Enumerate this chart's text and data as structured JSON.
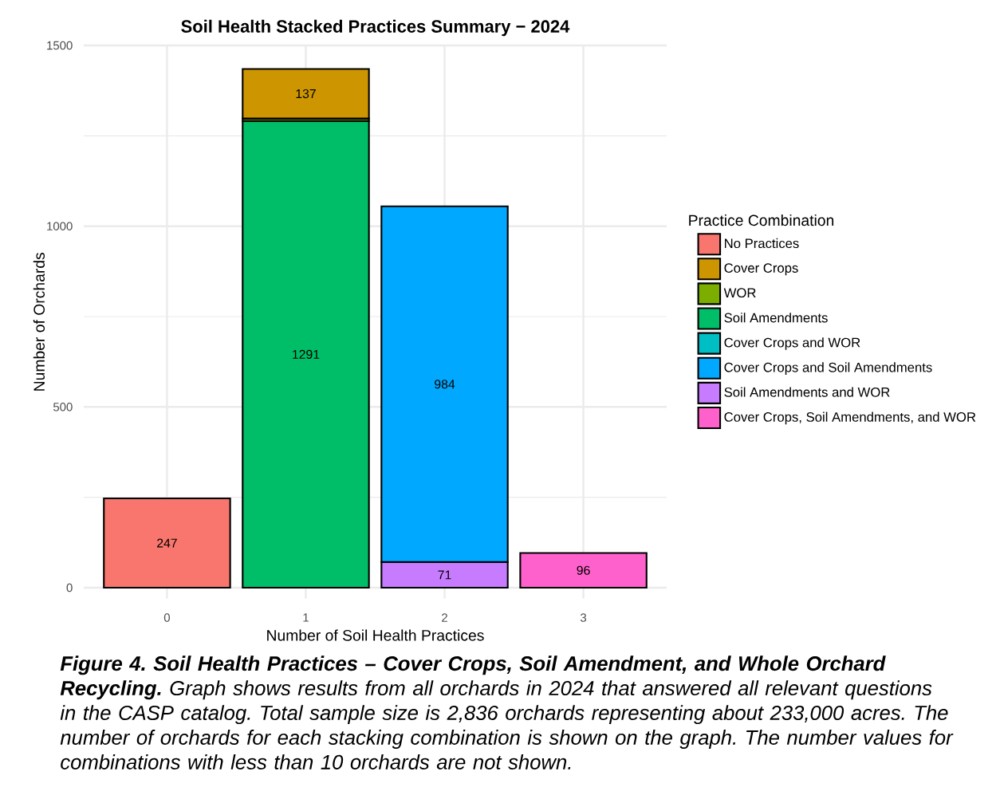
{
  "chart_data": {
    "type": "bar",
    "stacked": true,
    "title": "Soil Health Stacked Practices Summary − 2024",
    "xlabel": "Number of Soil Health Practices",
    "ylabel": "Number of Orchards",
    "legend_title": "Practice Combination",
    "categories": [
      "0",
      "1",
      "2",
      "3"
    ],
    "series": [
      {
        "name": "Cover Crops, Soil Amendments, and WOR",
        "color": "#ff61cc",
        "values": [
          null,
          null,
          null,
          96
        ],
        "value_labels": [
          null,
          null,
          null,
          "96"
        ]
      },
      {
        "name": "Soil Amendments and WOR",
        "color": "#c77cff",
        "values": [
          null,
          null,
          71,
          null
        ],
        "value_labels": [
          null,
          null,
          "71",
          null
        ]
      },
      {
        "name": "Cover Crops and Soil Amendments",
        "color": "#00a9ff",
        "values": [
          null,
          null,
          984,
          null
        ],
        "value_labels": [
          null,
          null,
          "984",
          null
        ]
      },
      {
        "name": "Cover Crops and WOR",
        "color": "#00bfc4",
        "values": [
          null,
          null,
          null,
          null
        ]
      },
      {
        "name": "Soil Amendments",
        "color": "#00be67",
        "values": [
          null,
          1291,
          null,
          null
        ],
        "value_labels": [
          null,
          "1291",
          null,
          null
        ]
      },
      {
        "name": "WOR",
        "color": "#7cae00",
        "values": [
          null,
          7,
          null,
          null
        ]
      },
      {
        "name": "Cover Crops",
        "color": "#cd9600",
        "values": [
          null,
          137,
          null,
          null
        ],
        "value_labels": [
          null,
          "137",
          null,
          null
        ]
      },
      {
        "name": "No Practices",
        "color": "#f8766d",
        "values": [
          247,
          null,
          null,
          null
        ],
        "value_labels": [
          "247",
          null,
          null,
          null
        ]
      }
    ],
    "ylim": [
      -30,
      1500
    ],
    "yticks": [
      0,
      500,
      1000,
      1500
    ],
    "grid": true,
    "legend": "right",
    "annotations": [
      "**Figure 4. Soil Health Practices – Cover Crops, Soil Amendment, and Whole Orchard Recycling.** Graph shows results from all orchards in 2024 that answered all relevant questions in the CASP catalog. Total sample size is 2,836 orchards representing about 233,000 acres. The number of orchards for each stacking combination is shown on the graph. The number values for combinations with less than 10 orchards are not shown."
    ]
  }
}
